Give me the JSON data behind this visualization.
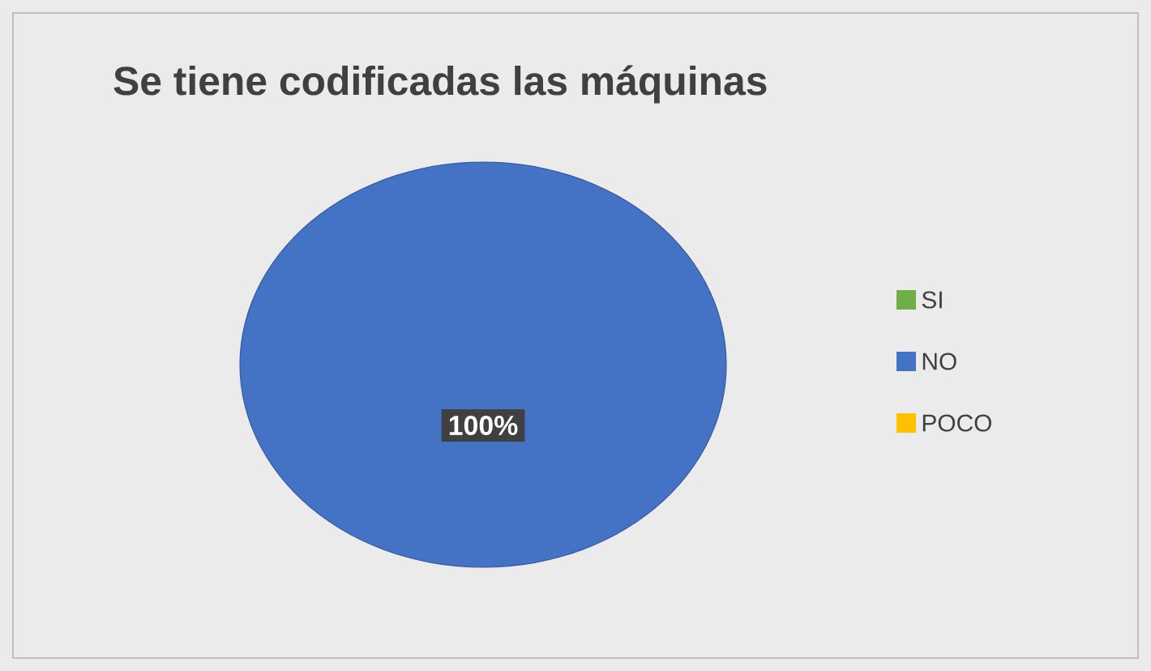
{
  "chart_data": {
    "type": "pie",
    "title": "Se tiene codificadas las máquinas",
    "categories": [
      "SI",
      "NO",
      "POCO"
    ],
    "values": [
      0,
      100,
      0
    ],
    "colors": [
      "#70ad47",
      "#4472c4",
      "#ffc000"
    ],
    "value_labels": [
      null,
      "100%",
      null
    ],
    "legend": "right"
  }
}
